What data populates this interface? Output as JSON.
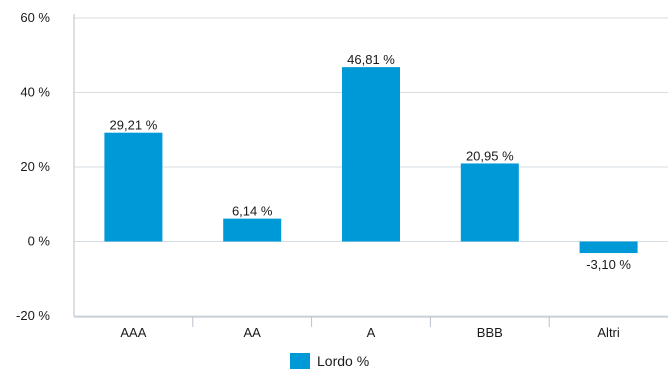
{
  "chart_data": {
    "type": "bar",
    "categories": [
      "AAA",
      "AA",
      "A",
      "BBB",
      "Altri"
    ],
    "series": [
      {
        "name": "Lordo %",
        "values": [
          29.21,
          6.14,
          46.81,
          20.95,
          -3.1
        ],
        "data_labels": [
          "29,21 %",
          "6,14 %",
          "46,81 %",
          "20,95 %",
          "-3,10 %"
        ]
      }
    ],
    "yticks": [
      -20,
      0,
      20,
      40,
      60
    ],
    "ytick_labels": [
      "-20 %",
      "0 %",
      "20 %",
      "40 %",
      "60 %"
    ],
    "ylim": [
      -20,
      60
    ],
    "grid": true,
    "legend": "bottom-center",
    "colors": {
      "bar": "#0099d8",
      "grid": "#d6dde3",
      "axis": "#b8c2cb"
    }
  }
}
